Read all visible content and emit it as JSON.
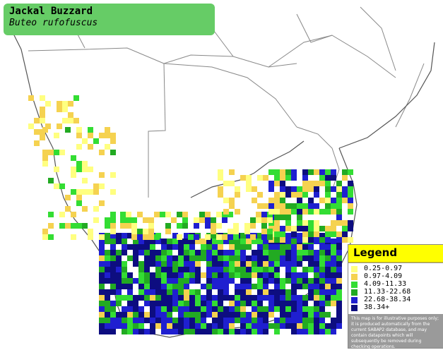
{
  "title": {
    "common_name": "Jackal Buzzard",
    "scientific_name": "Buteo rufofuscus"
  },
  "legend": {
    "heading": "Legend",
    "items": [
      {
        "label": "0.25-0.97",
        "color": "#ffff80"
      },
      {
        "label": "0.97-4.09",
        "color": "#f5d250"
      },
      {
        "label": "4.09-11.33",
        "color": "#33dd33"
      },
      {
        "label": "11.33-22.68",
        "color": "#22aa22"
      },
      {
        "label": "22.68-38.34",
        "color": "#1f1fd0"
      },
      {
        "label": "38.34+",
        "color": "#0d0d80"
      }
    ],
    "disclaimer": "This map is for illustrative purposes only; it is produced automatically from the current SABAP2 database, and may contain datapoints which will subsequently be removed during checking operations."
  },
  "map": {
    "colors": {
      "land": "#ffffff",
      "border": "#888888",
      "coast": "#555555",
      "background": "#ffffff"
    }
  }
}
